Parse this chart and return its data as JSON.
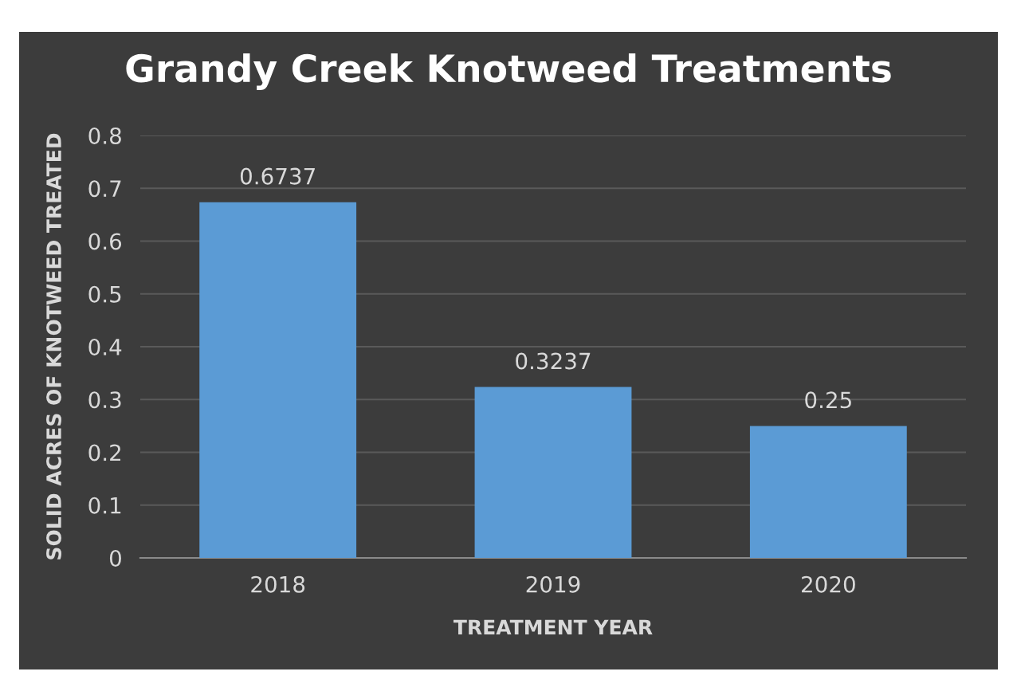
{
  "chart_data": {
    "type": "bar",
    "title": "Grandy Creek Knotweed Treatments",
    "xlabel": "TREATMENT YEAR",
    "ylabel": "SOLID ACRES OF KNOTWEED TREATED",
    "categories": [
      "2018",
      "2019",
      "2020"
    ],
    "values": [
      0.6737,
      0.3237,
      0.25
    ],
    "color": "#5b9bd5",
    "ylim": [
      0,
      0.8
    ],
    "yticks": [
      {
        "value": 0,
        "label": "0"
      },
      0.1,
      0.2,
      0.3,
      0.4,
      0.5,
      0.6,
      0.7,
      0.8
    ],
    "grid": "y",
    "data_labels": true
  }
}
